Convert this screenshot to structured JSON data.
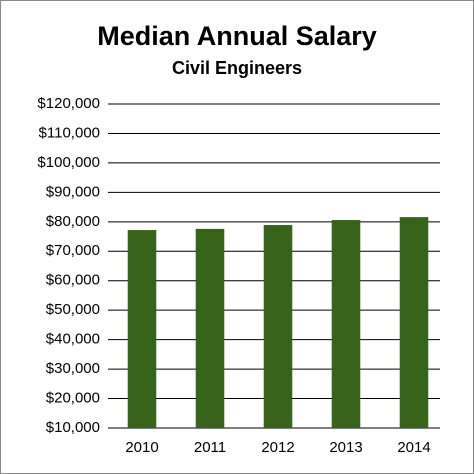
{
  "chart_data": {
    "type": "bar",
    "title": "Median Annual Salary",
    "subtitle": "Civil Engineers",
    "categories": [
      "2010",
      "2011",
      "2012",
      "2013",
      "2014"
    ],
    "values": [
      77200,
      77600,
      78900,
      80600,
      81600
    ],
    "color": "#38631a",
    "ylim": [
      10000,
      120000
    ],
    "yticks": [
      {
        "value": 10000,
        "label": "$10,000"
      },
      {
        "value": 20000,
        "label": "$20,000"
      },
      {
        "value": 30000,
        "label": "$30,000"
      },
      {
        "value": 40000,
        "label": "$40,000"
      },
      {
        "value": 50000,
        "label": "$50,000"
      },
      {
        "value": 60000,
        "label": "$60,000"
      },
      {
        "value": 70000,
        "label": "$70,000"
      },
      {
        "value": 80000,
        "label": "$80,000"
      },
      {
        "value": 90000,
        "label": "$90,000"
      },
      {
        "value": 100000,
        "label": "$100,000"
      },
      {
        "value": 110000,
        "label": "$110,000"
      },
      {
        "value": 120000,
        "label": "$120,000"
      }
    ],
    "grid": true
  }
}
